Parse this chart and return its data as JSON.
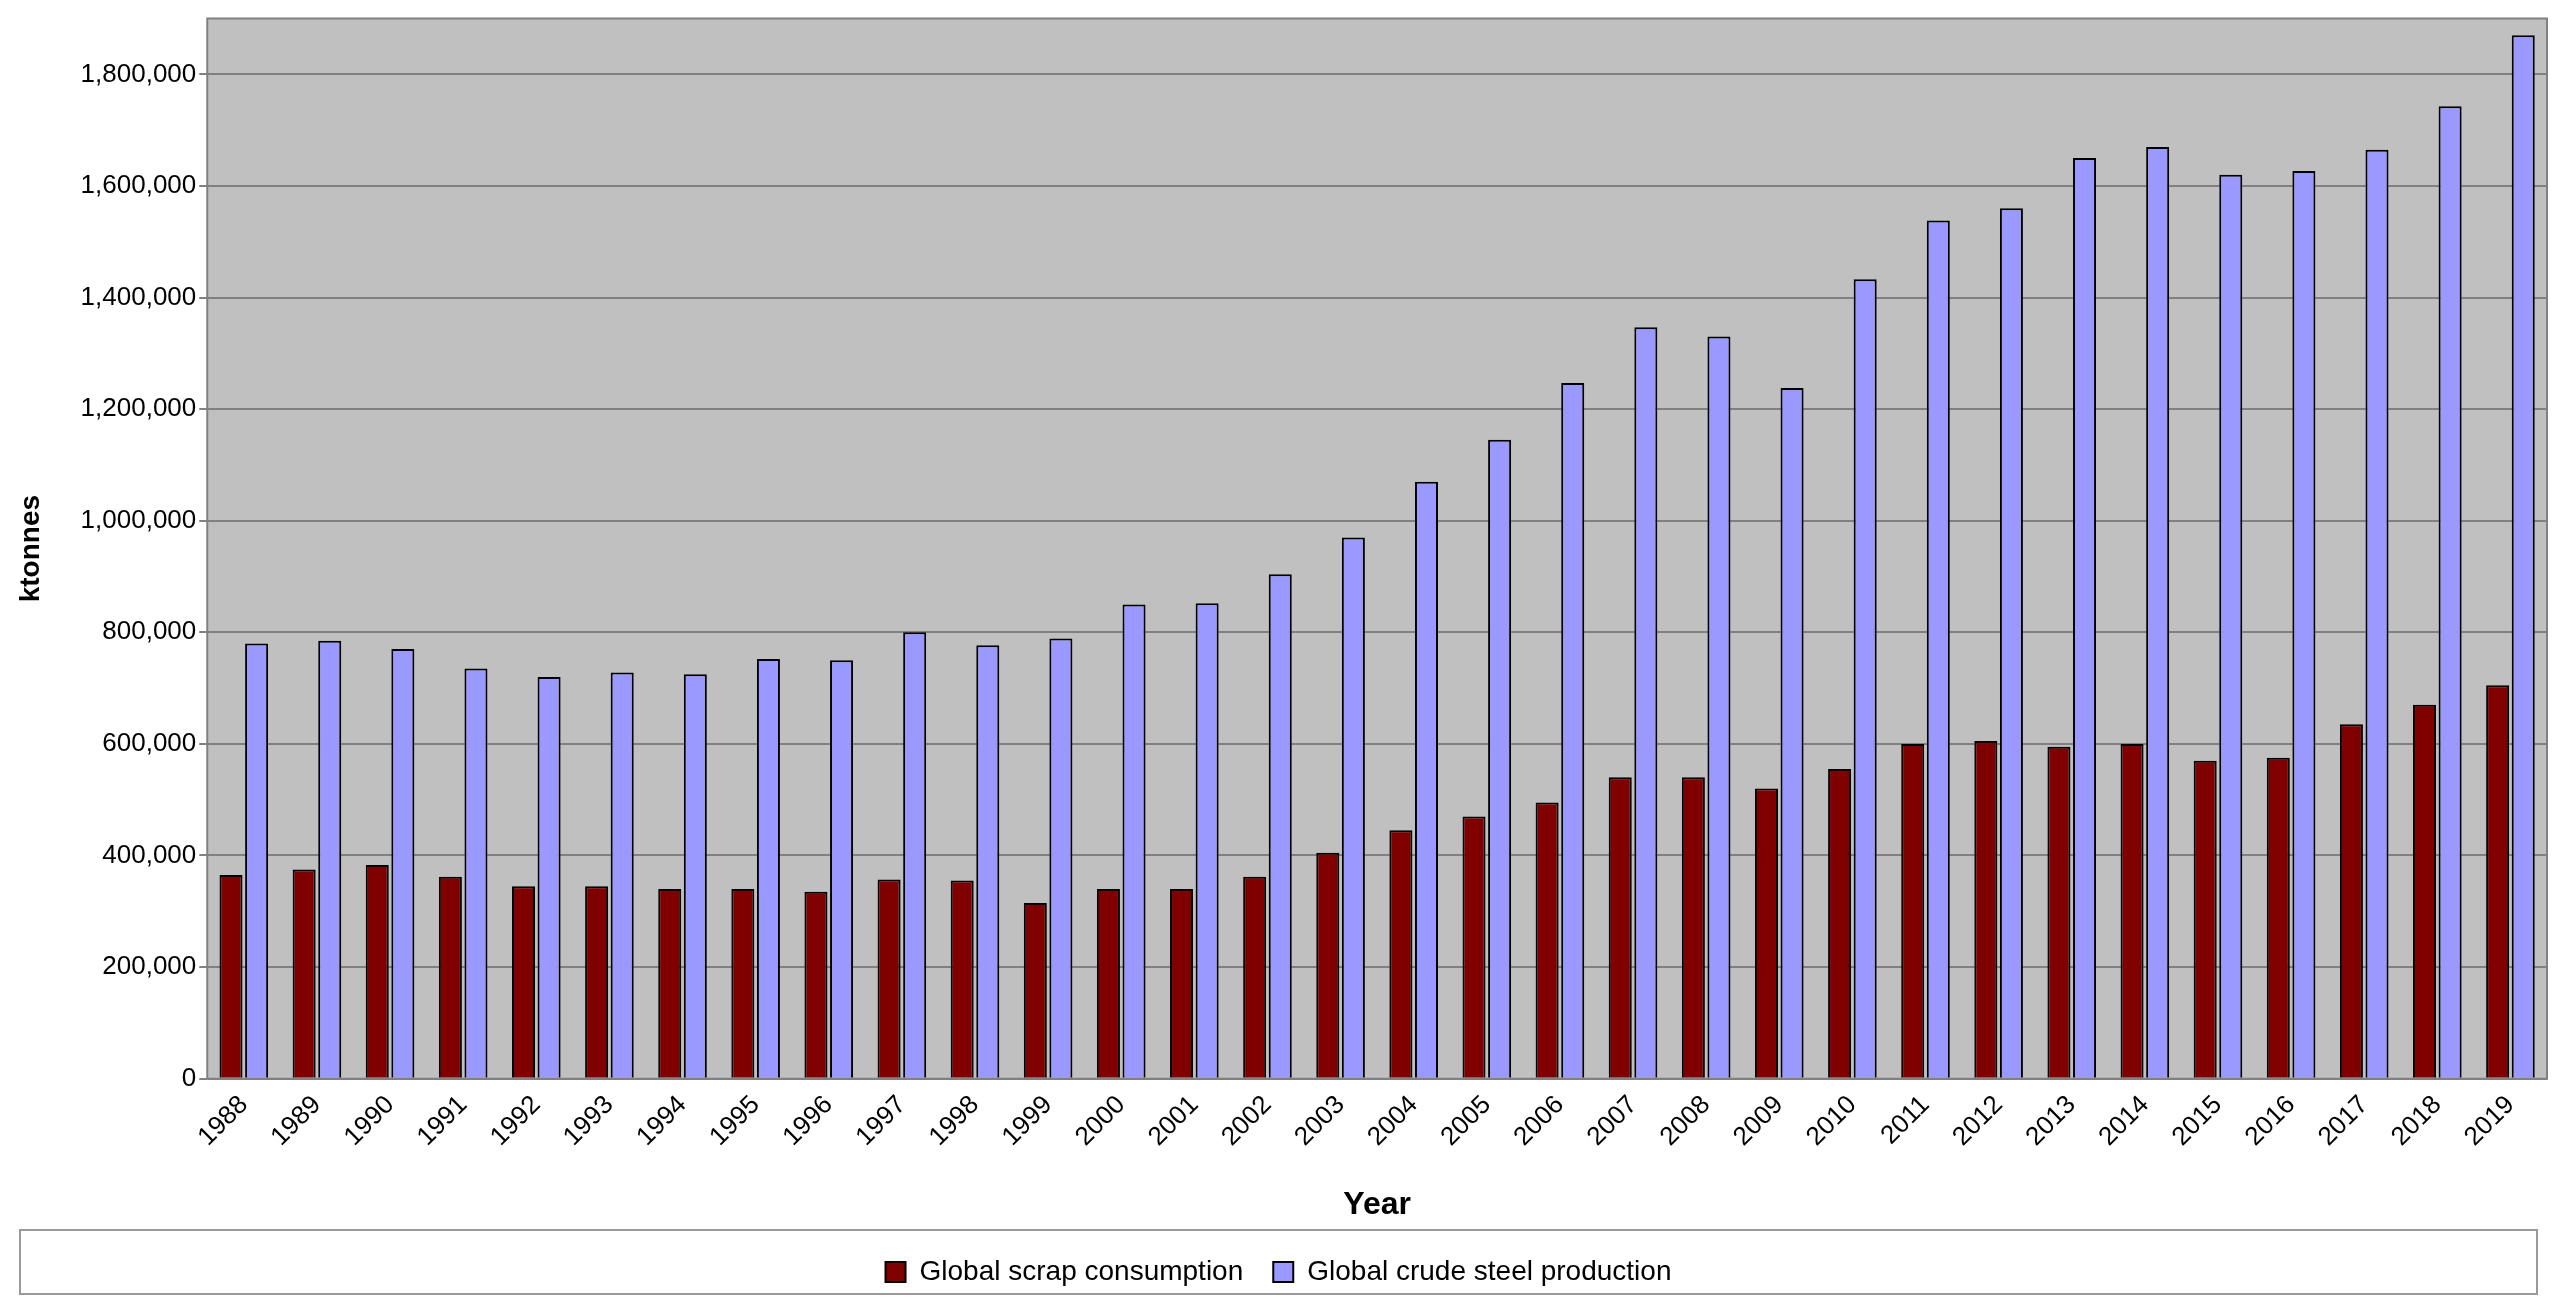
{
  "chart_data": {
    "type": "bar",
    "xlabel": "Year",
    "ylabel": "ktonnes",
    "categories": [
      "1988",
      "1989",
      "1990",
      "1991",
      "1992",
      "1993",
      "1994",
      "1995",
      "1996",
      "1997",
      "1998",
      "1999",
      "2000",
      "2001",
      "2002",
      "2003",
      "2004",
      "2005",
      "2006",
      "2007",
      "2008",
      "2009",
      "2010",
      "2011",
      "2012",
      "2013",
      "2014",
      "2015",
      "2016",
      "2017",
      "2018",
      "2019"
    ],
    "series": [
      {
        "name": "Global scrap consumption",
        "color": "#800000",
        "values": [
          365000,
          375000,
          383000,
          362000,
          345000,
          345000,
          340000,
          340000,
          335000,
          357000,
          355000,
          315000,
          340000,
          340000,
          362000,
          405000,
          445000,
          470000,
          495000,
          540000,
          540000,
          520000,
          555000,
          600000,
          605000,
          595000,
          600000,
          570000,
          575000,
          635000,
          670000,
          705000
        ]
      },
      {
        "name": "Global crude steel production",
        "color": "#9999ff",
        "values": [
          780000,
          785000,
          770000,
          735000,
          720000,
          728000,
          725000,
          752000,
          750000,
          800000,
          777000,
          789000,
          850000,
          852000,
          904000,
          970000,
          1070000,
          1145000,
          1247000,
          1347000,
          1330000,
          1238000,
          1433000,
          1538000,
          1560000,
          1650000,
          1670000,
          1620000,
          1627000,
          1665000,
          1743000,
          1870000
        ]
      }
    ],
    "ylim": [
      0,
      1900000
    ],
    "yticks": [
      {
        "value": 0,
        "label": "0"
      },
      {
        "value": 200000,
        "label": "200,000"
      },
      {
        "value": 400000,
        "label": "400,000"
      },
      {
        "value": 600000,
        "label": "600,000"
      },
      {
        "value": 800000,
        "label": "800,000"
      },
      {
        "value": 1000000,
        "label": "1,000,000"
      },
      {
        "value": 1200000,
        "label": "1,200,000"
      },
      {
        "value": 1400000,
        "label": "1,400,000"
      },
      {
        "value": 1600000,
        "label": "1,600,000"
      },
      {
        "value": 1800000,
        "label": "1,800,000"
      }
    ],
    "grid": "y",
    "legend": "bottom"
  }
}
